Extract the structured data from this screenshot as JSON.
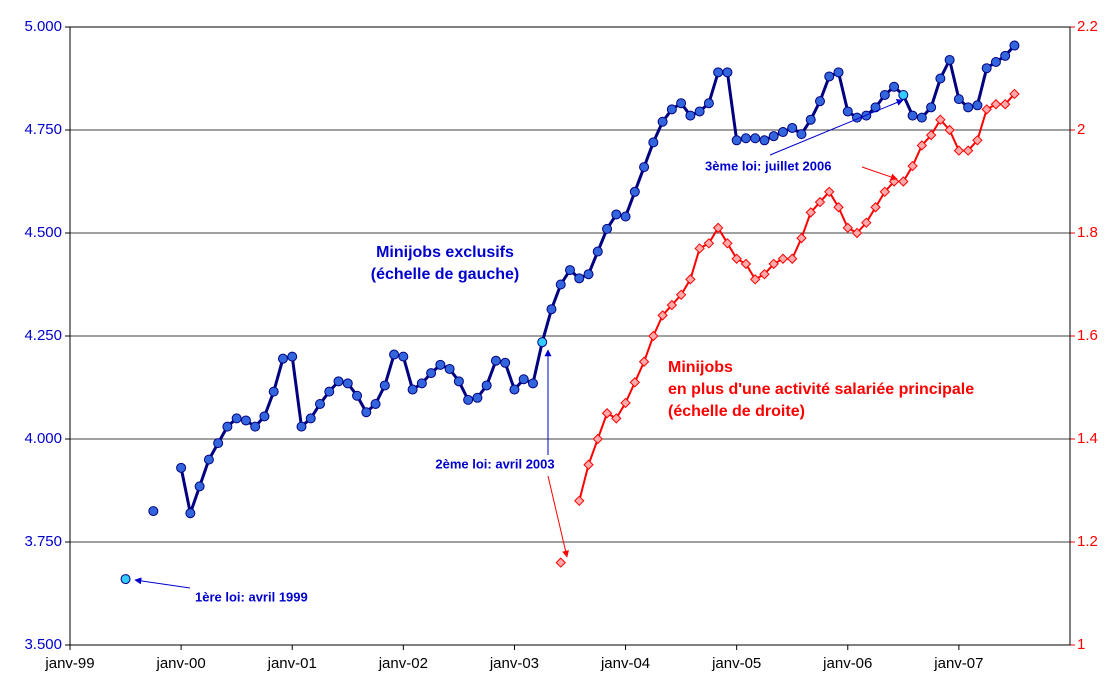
{
  "chart_data": {
    "type": "line",
    "categories": [
      "janv-99",
      null,
      null,
      null,
      null,
      null,
      null,
      null,
      null,
      null,
      null,
      null,
      "janv-00",
      null,
      null,
      null,
      null,
      null,
      null,
      null,
      null,
      null,
      null,
      null,
      "janv-01",
      null,
      null,
      null,
      null,
      null,
      null,
      null,
      null,
      null,
      null,
      null,
      "janv-02",
      null,
      null,
      null,
      null,
      null,
      null,
      null,
      null,
      null,
      null,
      null,
      "janv-03",
      null,
      null,
      null,
      null,
      null,
      null,
      null,
      null,
      null,
      null,
      null,
      "janv-04",
      null,
      null,
      null,
      null,
      null,
      null,
      null,
      null,
      null,
      null,
      null,
      "janv-05",
      null,
      null,
      null,
      null,
      null,
      null,
      null,
      null,
      null,
      null,
      null,
      "janv-06",
      null,
      null,
      null,
      null,
      null,
      null,
      null,
      null,
      null,
      null,
      null,
      "janv-07",
      null,
      null,
      null,
      null,
      null,
      null,
      null,
      null,
      null,
      null,
      null
    ],
    "series": [
      {
        "name": "Minijobs exclusifs",
        "subtitle": "(échelle de gauche)",
        "color": "#000080",
        "marker_color": "#3366dd",
        "highlight_color": "#33ccff",
        "highlights": [
          6,
          51,
          90
        ],
        "axis": "y",
        "values": [
          null,
          null,
          null,
          null,
          null,
          null,
          3660,
          null,
          null,
          3825,
          null,
          null,
          3930,
          3820,
          3885,
          3950,
          3990,
          4030,
          4050,
          4045,
          4030,
          4055,
          4115,
          4195,
          4200,
          4030,
          4050,
          4085,
          4115,
          4140,
          4135,
          4105,
          4065,
          4085,
          4130,
          4205,
          4200,
          4120,
          4135,
          4160,
          4180,
          4170,
          4140,
          4095,
          4100,
          4130,
          4190,
          4185,
          4120,
          4145,
          4135,
          4235,
          4315,
          4375,
          4410,
          4390,
          4400,
          4455,
          4510,
          4545,
          4540,
          4600,
          4660,
          4720,
          4770,
          4800,
          4815,
          4785,
          4795,
          4815,
          4890,
          4890,
          4725,
          4730,
          4730,
          4725,
          4735,
          4745,
          4755,
          4740,
          4775,
          4820,
          4880,
          4890,
          4795,
          4780,
          4785,
          4805,
          4835,
          4855,
          4835,
          4785,
          4780,
          4805,
          4875,
          4920,
          4825,
          4805,
          4810,
          4900,
          4915,
          4930,
          4955,
          null,
          null,
          null,
          null,
          null
        ]
      },
      {
        "name": "Minijobs",
        "lines": [
          "en plus d'une activité salariée principale",
          "(échelle de droite)"
        ],
        "color": "#ff0000",
        "marker_color": "#ffaaaa",
        "axis": "y2",
        "values": [
          null,
          null,
          null,
          null,
          null,
          null,
          null,
          null,
          null,
          null,
          null,
          null,
          null,
          null,
          null,
          null,
          null,
          null,
          null,
          null,
          null,
          null,
          null,
          null,
          null,
          null,
          null,
          null,
          null,
          null,
          null,
          null,
          null,
          null,
          null,
          null,
          null,
          null,
          null,
          null,
          null,
          null,
          null,
          null,
          null,
          null,
          null,
          null,
          null,
          null,
          null,
          null,
          null,
          1.16,
          null,
          1.28,
          1.35,
          1.4,
          1.45,
          1.44,
          1.47,
          1.51,
          1.55,
          1.6,
          1.64,
          1.66,
          1.68,
          1.71,
          1.77,
          1.78,
          1.81,
          1.78,
          1.75,
          1.74,
          1.71,
          1.72,
          1.74,
          1.75,
          1.75,
          1.79,
          1.84,
          1.86,
          1.88,
          1.85,
          1.81,
          1.8,
          1.82,
          1.85,
          1.88,
          1.9,
          1.9,
          1.93,
          1.97,
          1.99,
          2.02,
          2,
          1.96,
          1.96,
          1.98,
          2.04,
          2.05,
          2.05,
          2.07,
          null,
          null,
          null,
          null,
          null
        ]
      }
    ],
    "ylim": [
      3500,
      5000
    ],
    "yticks": [
      {
        "value": 3500,
        "label": "3.500"
      },
      {
        "value": 3750,
        "label": "3.750"
      },
      {
        "value": 4000,
        "label": "4.000"
      },
      {
        "value": 4250,
        "label": "4.250"
      },
      {
        "value": 4500,
        "label": "4.500"
      },
      {
        "value": 4750,
        "label": "4.750"
      },
      {
        "value": 5000,
        "label": "5.000"
      }
    ],
    "y2lim": [
      1,
      2.2
    ],
    "y2ticks": [
      1,
      1.2,
      1.4,
      1.6,
      1.8,
      2,
      2.2
    ],
    "grid": true,
    "annotations": [
      "1ère loi: avril 1999",
      "2ème loi: avril 2003",
      "3ème loi: juillet 2006"
    ]
  }
}
